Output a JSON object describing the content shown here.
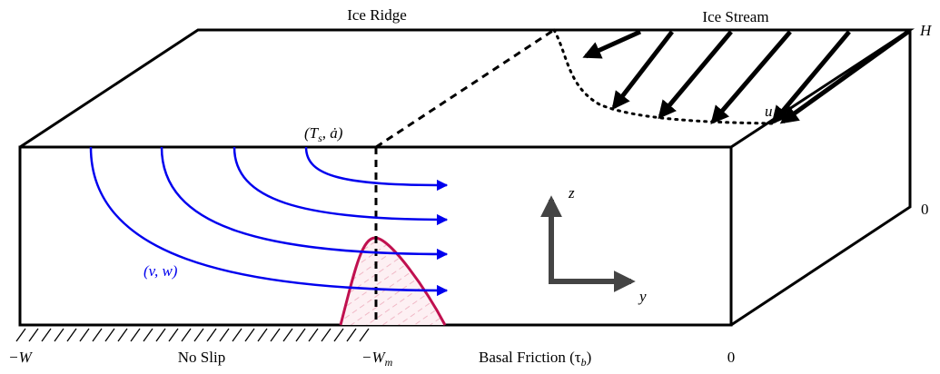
{
  "labels": {
    "ice_ridge": "Ice Ridge",
    "ice_stream": "Ice Stream",
    "height": "H",
    "surface_forcing": {
      "open": "(T",
      "sub": "s",
      "close": ", ȧ)"
    },
    "stream_velocity": "u",
    "right_zero": "0",
    "axis_z": "z",
    "axis_y": "y",
    "flow_velocity": "(v, w)",
    "left_edge": "−W",
    "no_slip": "No Slip",
    "margin": {
      "main": "−W",
      "sub": "m"
    },
    "basal_friction": {
      "open": "Basal Friction (τ",
      "sub": "b",
      "close": ")"
    },
    "bottom_zero": "0"
  }
}
